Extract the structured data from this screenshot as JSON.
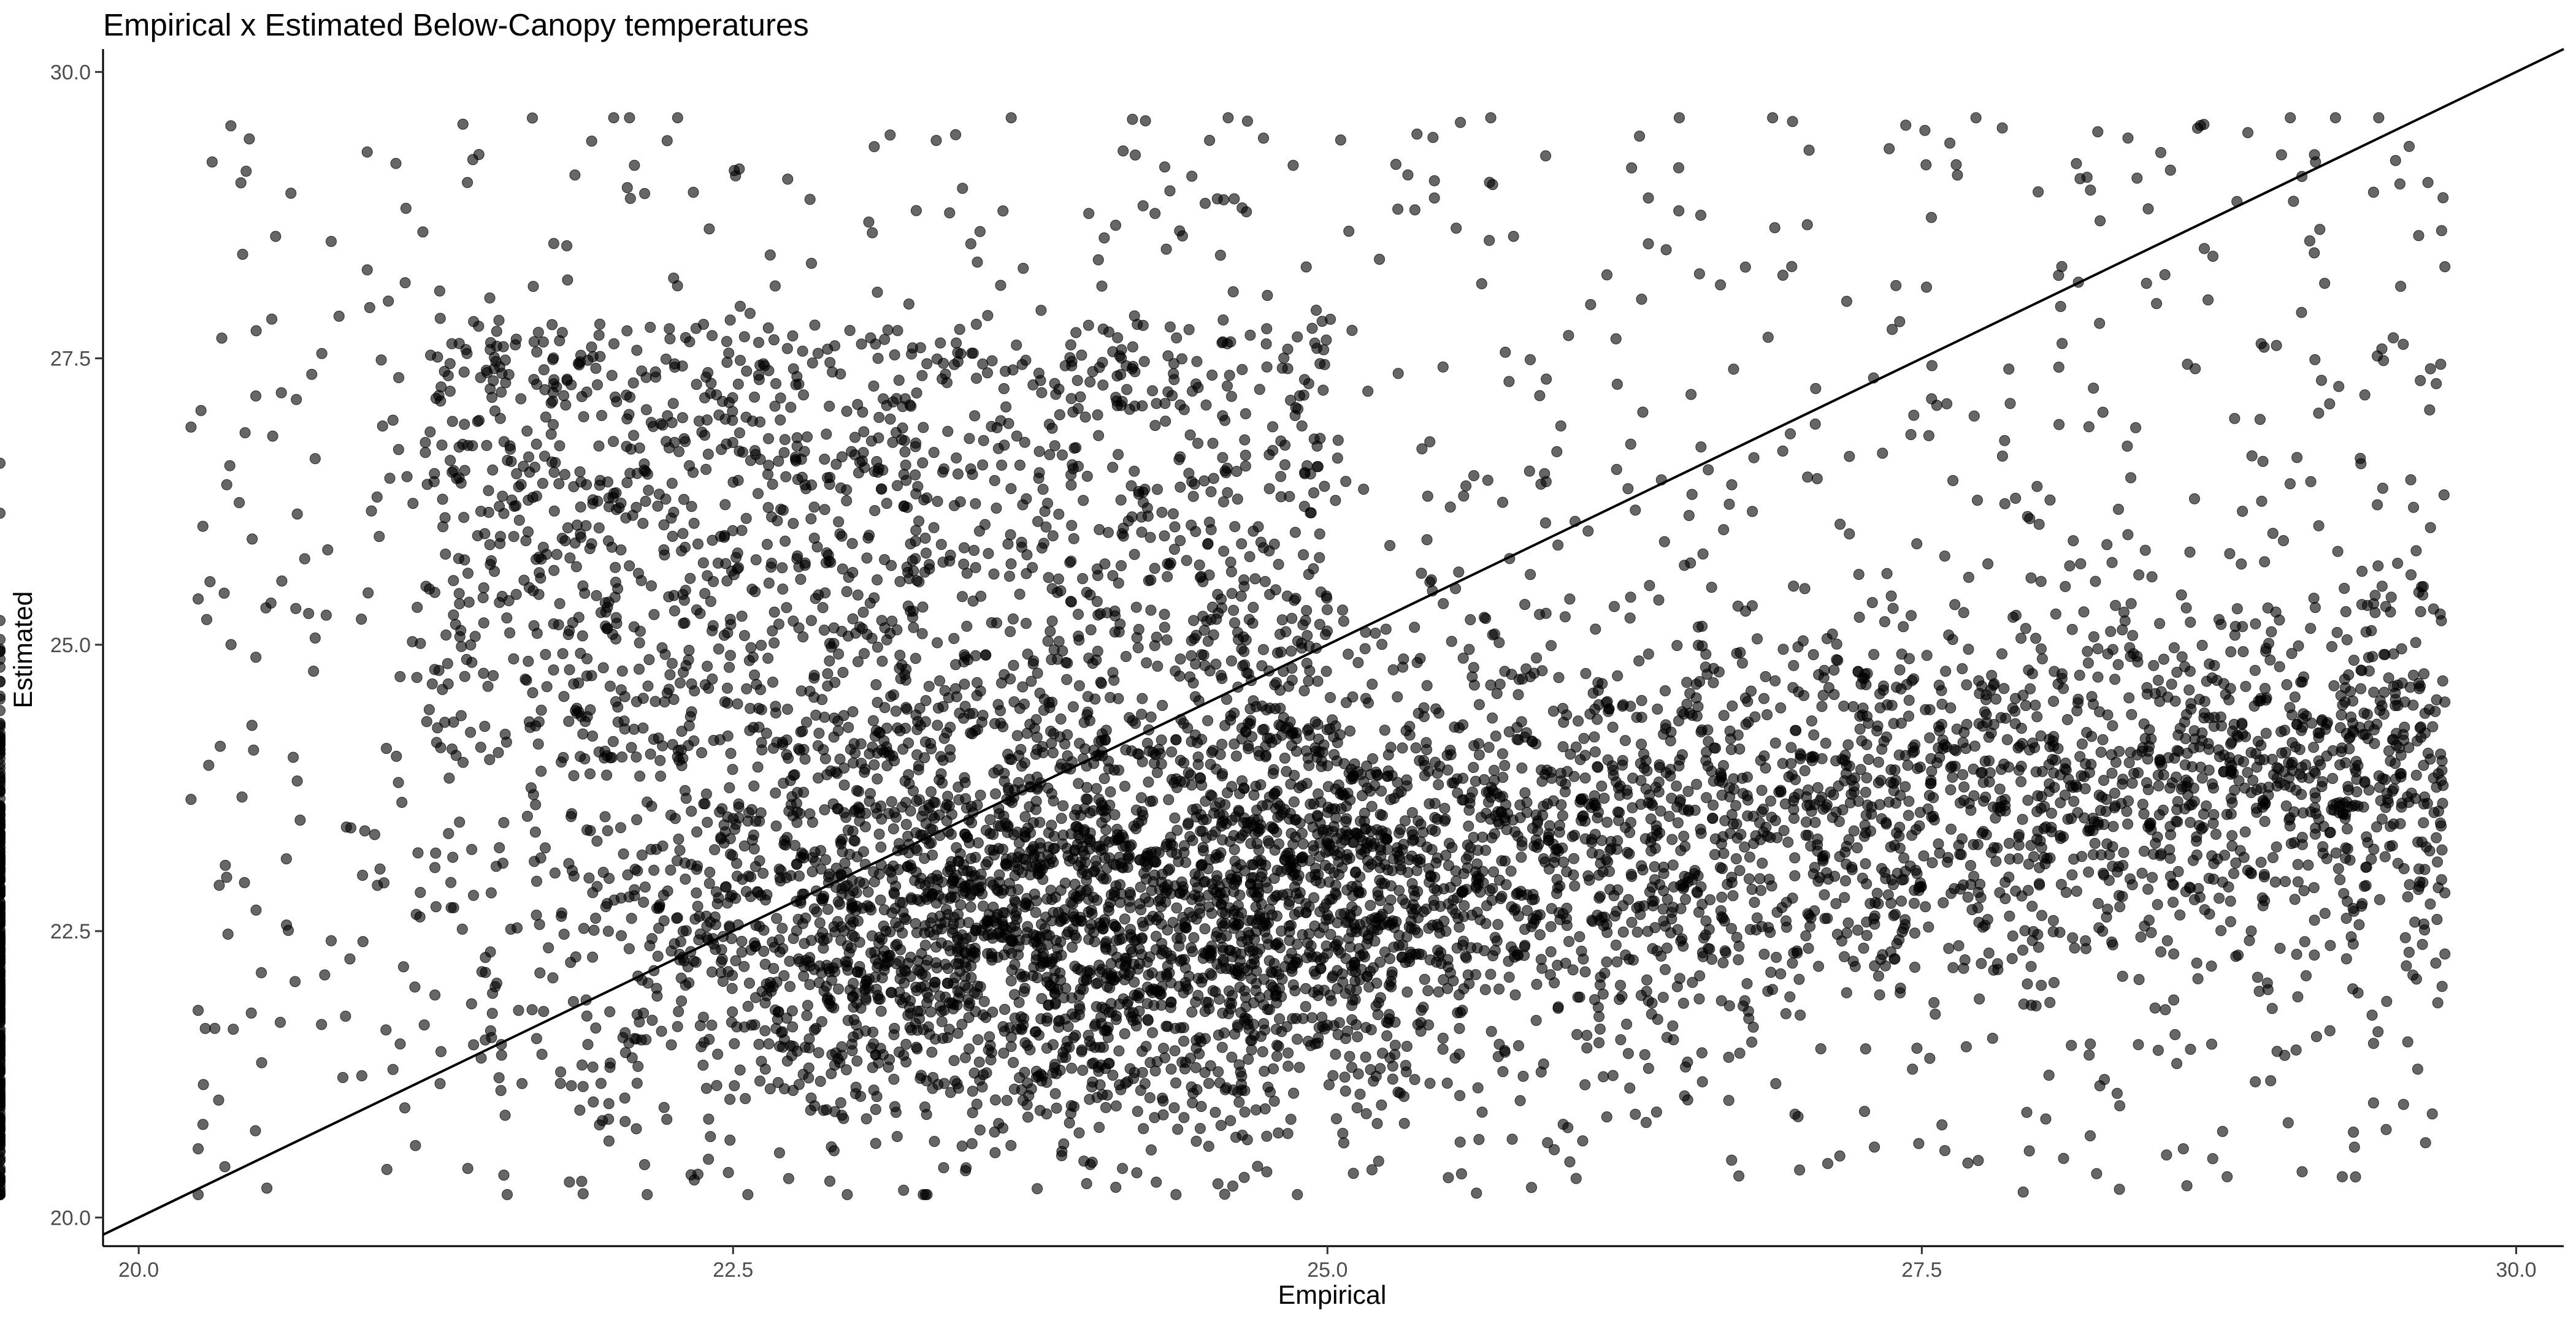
{
  "chart_data": {
    "type": "scatter",
    "title": "Empirical x Estimated Below-Canopy temperatures",
    "xlabel": "Empirical",
    "ylabel": "Estimated",
    "xlim": [
      19.85,
      30.2
    ],
    "ylim": [
      19.75,
      30.2
    ],
    "x_ticks": [
      20.0,
      22.5,
      25.0,
      27.5,
      30.0
    ],
    "x_tick_labels": [
      "20.0",
      "22.5",
      "25.0",
      "27.5",
      "30.0"
    ],
    "y_ticks": [
      20.0,
      22.5,
      25.0,
      27.5,
      30.0
    ],
    "y_tick_labels": [
      "20.0",
      "22.5",
      "25.0",
      "27.5",
      "30.0"
    ],
    "grid": false,
    "legend": "none",
    "reference_line": {
      "slope": 1,
      "intercept": 0
    },
    "point_color": "#000000",
    "point_opacity": 0.6,
    "series": [
      {
        "clusters": [
          {
            "x_range": [
              20.25,
              29.7
            ],
            "y_range": [
              20.2,
              29.7
            ],
            "count": 1200,
            "shape": "uniform"
          },
          {
            "x_range": [
              21.2,
              25.0
            ],
            "y_range": [
              24.0,
              27.8
            ],
            "count": 1300,
            "shape": "uniform"
          },
          {
            "x_mean": 23.8,
            "x_sd": 1.0,
            "y_mean": 22.6,
            "y_sd": 0.9,
            "count": 2600,
            "shape": "normal"
          },
          {
            "x_range": [
              24.5,
              29.7
            ],
            "y_mean_start": 23.0,
            "y_mean_end": 24.0,
            "y_sd": 0.85,
            "count": 2300,
            "shape": "trend"
          },
          {
            "x_range": [
              20.25,
              21.8
            ],
            "y_mean": 22.0,
            "y_sd": 1.3,
            "count": 350,
            "shape": "normal"
          }
        ],
        "points": [
          [
            20.22,
            26.9
          ],
          [
            20.25,
            25.4
          ],
          [
            20.3,
            25.55
          ],
          [
            20.28,
            21.65
          ],
          [
            20.22,
            23.65
          ],
          [
            20.25,
            20.6
          ],
          [
            21.05,
            28.0
          ],
          [
            22.25,
            28.2
          ],
          [
            23.5,
            28.5
          ],
          [
            24.55,
            28.4
          ],
          [
            25.45,
            29.05
          ],
          [
            25.45,
            28.9
          ],
          [
            26.35,
            28.9
          ],
          [
            26.35,
            28.5
          ],
          [
            27.65,
            29.1
          ],
          [
            28.15,
            29.2
          ],
          [
            28.25,
            28.7
          ],
          [
            29.05,
            29.6
          ],
          [
            29.55,
            29.35
          ],
          [
            29.4,
            28.95
          ],
          [
            29.7,
            28.3
          ],
          [
            29.7,
            22.3
          ],
          [
            29.7,
            24.5
          ],
          [
            26.7,
            20.5
          ],
          [
            29.4,
            21.0
          ],
          [
            28.6,
            20.6
          ],
          [
            23.3,
            20.2
          ],
          [
            21.55,
            20.2
          ],
          [
            24.65,
            20.35
          ],
          [
            20.6,
            27.2
          ]
        ]
      }
    ]
  }
}
